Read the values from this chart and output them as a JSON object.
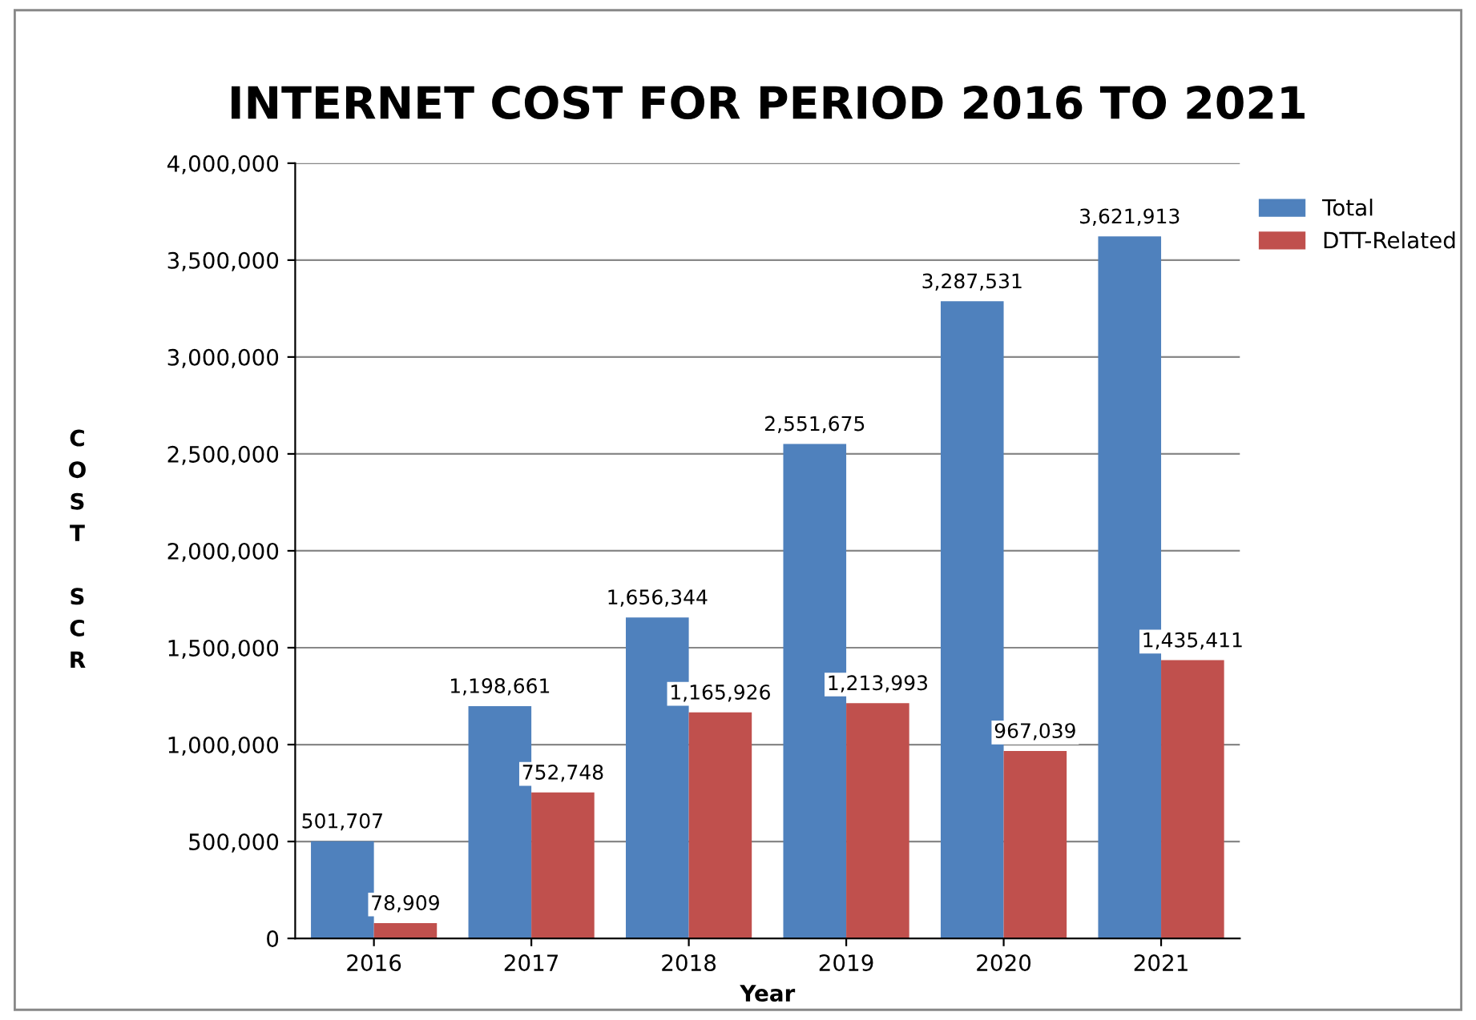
{
  "chart_data": {
    "type": "bar",
    "title": "INTERNET COST FOR PERIOD 2016 TO 2021",
    "xlabel": "Year",
    "ylabel": "COST SCR",
    "categories": [
      "2016",
      "2017",
      "2018",
      "2019",
      "2020",
      "2021"
    ],
    "series": [
      {
        "name": "Total",
        "color": "#4f81bd",
        "values": [
          501707,
          1198661,
          1656344,
          2551675,
          3287531,
          3621913
        ],
        "value_labels": [
          "501,707",
          "1,198,661",
          "1,656,344",
          "2,551,675",
          "3,287,531",
          "3,621,913"
        ]
      },
      {
        "name": "DTT-Related",
        "color": "#c0504d",
        "values": [
          78909,
          752748,
          1165926,
          1213993,
          967039,
          1435411
        ],
        "value_labels": [
          "78,909",
          "752,748",
          "1,165,926",
          "1,213,993",
          "967,039",
          "1,435,411"
        ]
      }
    ],
    "ylim": [
      0,
      4000000
    ],
    "yticks": [
      {
        "value": 0,
        "label": "0"
      },
      {
        "value": 500000,
        "label": "500,000"
      },
      {
        "value": 1000000,
        "label": "1,000,000"
      },
      {
        "value": 1500000,
        "label": "1,500,000"
      },
      {
        "value": 2000000,
        "label": "2,000,000"
      },
      {
        "value": 2500000,
        "label": "2,500,000"
      },
      {
        "value": 3000000,
        "label": "3,000,000"
      },
      {
        "value": 3500000,
        "label": "3,500,000"
      },
      {
        "value": 4000000,
        "label": "4,000,000"
      }
    ],
    "grid": "y",
    "legend": "right"
  }
}
